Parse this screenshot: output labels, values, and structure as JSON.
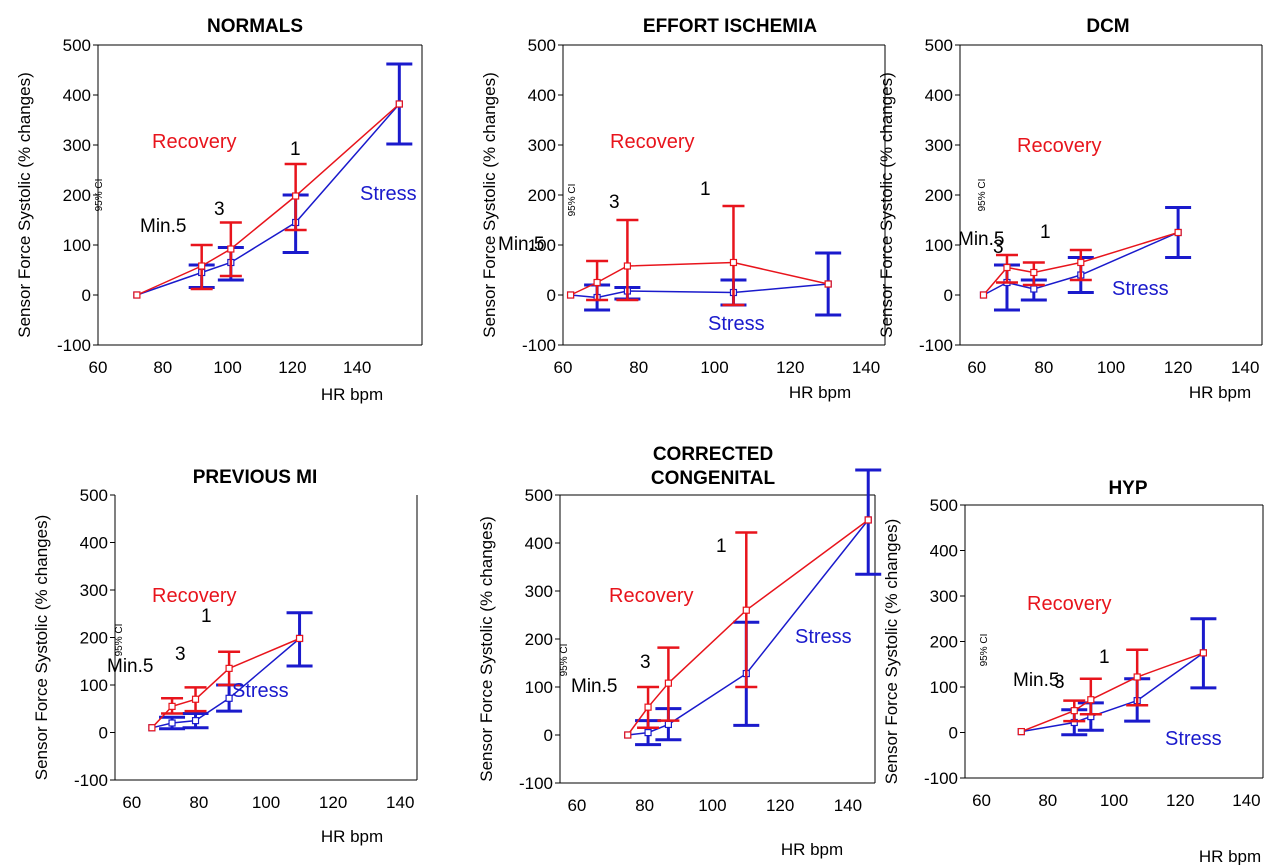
{
  "shared": {
    "ylabel": "Sensor Force Systolic (% changes)",
    "xlabel": "HR bpm",
    "ci_label": "95% CI",
    "recovery_label": "Recovery",
    "stress_label": "Stress",
    "y_ticks": [
      "500",
      "400",
      "300",
      "200",
      "100",
      "0",
      "-100"
    ],
    "y_tick_values": [
      500,
      400,
      300,
      200,
      100,
      0,
      -100
    ],
    "x_ticks": [
      "60",
      "80",
      "100",
      "120",
      "140"
    ],
    "x_tick_values": [
      60,
      80,
      100,
      120,
      140
    ],
    "colors": {
      "recovery": "#e8141c",
      "stress": "#1a1acc",
      "axis": "#000000"
    }
  },
  "chart_data": [
    {
      "type": "line",
      "title": "NORMALS",
      "xlim": [
        60,
        160
      ],
      "ylim": [
        -100,
        500
      ],
      "recovery": {
        "x": [
          72,
          92,
          101,
          121,
          153
        ],
        "y": [
          0,
          58,
          92,
          198,
          382
        ],
        "ci_lo": [
          null,
          12,
          38,
          130,
          null
        ],
        "ci_hi": [
          null,
          100,
          145,
          262,
          null
        ]
      },
      "stress": {
        "x": [
          72,
          92,
          101,
          121,
          153
        ],
        "y": [
          0,
          45,
          65,
          145,
          382
        ],
        "ci_lo": [
          null,
          15,
          30,
          85,
          302
        ],
        "ci_hi": [
          null,
          60,
          95,
          200,
          462
        ]
      },
      "annotations": [
        "Min.5",
        "3",
        "1"
      ]
    },
    {
      "type": "line",
      "title": "EFFORT ISCHEMIA",
      "xlim": [
        60,
        145
      ],
      "ylim": [
        -100,
        500
      ],
      "recovery": {
        "x": [
          62,
          69,
          77,
          105,
          130
        ],
        "y": [
          0,
          25,
          58,
          65,
          22
        ],
        "ci_lo": [
          null,
          -10,
          -10,
          -20,
          null
        ],
        "ci_hi": [
          null,
          68,
          150,
          178,
          null
        ]
      },
      "stress": {
        "x": [
          62,
          69,
          77,
          105,
          130
        ],
        "y": [
          0,
          -5,
          8,
          5,
          22
        ],
        "ci_lo": [
          null,
          -30,
          -8,
          -20,
          -40
        ],
        "ci_hi": [
          null,
          20,
          15,
          30,
          84
        ]
      },
      "annotations": [
        "Min.5",
        "3",
        "1"
      ]
    },
    {
      "type": "line",
      "title": "DCM",
      "xlim": [
        55,
        145
      ],
      "ylim": [
        -100,
        500
      ],
      "recovery": {
        "x": [
          62,
          69,
          77,
          91,
          120
        ],
        "y": [
          0,
          55,
          45,
          65,
          125
        ],
        "ci_lo": [
          null,
          25,
          20,
          30,
          null
        ],
        "ci_hi": [
          null,
          80,
          65,
          90,
          null
        ]
      },
      "stress": {
        "x": [
          62,
          69,
          77,
          91,
          120
        ],
        "y": [
          0,
          25,
          12,
          40,
          125
        ],
        "ci_lo": [
          null,
          -30,
          -10,
          5,
          75
        ],
        "ci_hi": [
          null,
          60,
          30,
          75,
          175
        ]
      },
      "annotations": [
        "Min.5",
        "3",
        "1"
      ]
    },
    {
      "type": "line",
      "title": "PREVIOUS MI",
      "xlim": [
        55,
        145
      ],
      "ylim": [
        -100,
        500
      ],
      "recovery": {
        "x": [
          66,
          72,
          79,
          89,
          110
        ],
        "y": [
          10,
          55,
          70,
          135,
          198
        ],
        "ci_lo": [
          null,
          40,
          45,
          100,
          null
        ],
        "ci_hi": [
          null,
          72,
          95,
          170,
          null
        ]
      },
      "stress": {
        "x": [
          66,
          72,
          79,
          89,
          110
        ],
        "y": [
          10,
          20,
          25,
          72,
          198
        ],
        "ci_lo": [
          null,
          8,
          10,
          45,
          140
        ],
        "ci_hi": [
          null,
          32,
          40,
          100,
          252
        ]
      },
      "annotations": [
        "Min.5",
        "3",
        "1"
      ]
    },
    {
      "type": "line",
      "title": "CORRECTED CONGENITAL",
      "xlim": [
        55,
        148
      ],
      "ylim": [
        -100,
        500
      ],
      "recovery": {
        "x": [
          75,
          81,
          87,
          110,
          146
        ],
        "y": [
          0,
          58,
          108,
          260,
          448
        ],
        "ci_lo": [
          null,
          15,
          30,
          100,
          null
        ],
        "ci_hi": [
          null,
          100,
          182,
          422,
          null
        ]
      },
      "stress": {
        "x": [
          75,
          81,
          87,
          110,
          146
        ],
        "y": [
          0,
          5,
          22,
          128,
          448
        ],
        "ci_lo": [
          null,
          -20,
          -10,
          20,
          335
        ],
        "ci_hi": [
          null,
          30,
          55,
          235,
          552
        ]
      },
      "annotations": [
        "Min.5",
        "3",
        "1"
      ]
    },
    {
      "type": "line",
      "title": "HYP",
      "xlim": [
        55,
        145
      ],
      "ylim": [
        -100,
        500
      ],
      "recovery": {
        "x": [
          72,
          88,
          93,
          107,
          127
        ],
        "y": [
          2,
          48,
          72,
          122,
          175
        ],
        "ci_lo": [
          null,
          25,
          40,
          60,
          null
        ],
        "ci_hi": [
          null,
          70,
          118,
          182,
          null
        ]
      },
      "stress": {
        "x": [
          72,
          88,
          93,
          107,
          127
        ],
        "y": [
          2,
          22,
          35,
          70,
          175
        ],
        "ci_lo": [
          null,
          -5,
          5,
          25,
          98
        ],
        "ci_hi": [
          null,
          50,
          65,
          118,
          250
        ]
      },
      "annotations": [
        "Min.5",
        "3",
        "1"
      ]
    }
  ]
}
